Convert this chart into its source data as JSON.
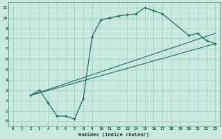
{
  "xlabel": "Humidex (Indice chaleur)",
  "background_color": "#c8e8e0",
  "grid_color": "#a8d0c8",
  "line_color": "#1e6e60",
  "xlim": [
    -0.5,
    23.5
  ],
  "ylim": [
    -0.5,
    11.5
  ],
  "xticks": [
    0,
    1,
    2,
    3,
    4,
    5,
    6,
    7,
    8,
    9,
    10,
    11,
    12,
    13,
    14,
    15,
    16,
    17,
    18,
    19,
    20,
    21,
    22,
    23
  ],
  "yticks": [
    0,
    1,
    2,
    3,
    4,
    5,
    6,
    7,
    8,
    9,
    10,
    11
  ],
  "curve": {
    "x": [
      2,
      3,
      4,
      5,
      6,
      7,
      8,
      9,
      10,
      11,
      12,
      13,
      14,
      15,
      16,
      17,
      20,
      21,
      22,
      23
    ],
    "y": [
      2.5,
      3.0,
      1.8,
      0.5,
      0.5,
      0.2,
      2.2,
      8.2,
      9.8,
      10.0,
      10.2,
      10.3,
      10.4,
      11.0,
      10.7,
      10.4,
      8.3,
      8.5,
      7.8,
      7.5
    ]
  },
  "line2": {
    "x": [
      2,
      23
    ],
    "y": [
      2.5,
      8.5
    ]
  },
  "line3": {
    "x": [
      2,
      23
    ],
    "y": [
      2.5,
      7.5
    ]
  }
}
